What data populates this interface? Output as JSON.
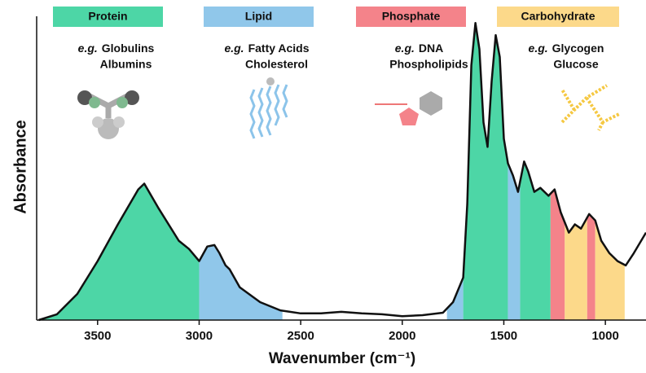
{
  "chart_data": {
    "type": "line",
    "x_label": "Wavenumber (cm⁻¹)",
    "y_label": "Absorbance",
    "xlim": [
      3800,
      800
    ],
    "ylim": [
      0,
      100
    ],
    "xticks": [
      3500,
      3000,
      2500,
      2000,
      1500,
      1000
    ],
    "line_color": "#111111",
    "example_prefix": "e.g.",
    "x": [
      3790,
      3700,
      3600,
      3500,
      3400,
      3300,
      3270,
      3200,
      3100,
      3050,
      3000,
      2960,
      2925,
      2900,
      2870,
      2850,
      2800,
      2700,
      2600,
      2500,
      2400,
      2300,
      2200,
      2100,
      2000,
      1900,
      1800,
      1750,
      1700,
      1680,
      1660,
      1640,
      1620,
      1600,
      1580,
      1560,
      1540,
      1520,
      1500,
      1480,
      1455,
      1430,
      1400,
      1380,
      1350,
      1320,
      1280,
      1250,
      1220,
      1180,
      1150,
      1120,
      1080,
      1050,
      1020,
      980,
      940,
      900,
      860,
      800
    ],
    "values": [
      0,
      1.9,
      8.6,
      19.4,
      31.5,
      43.0,
      44.9,
      36.8,
      26.1,
      23.4,
      19.4,
      24.2,
      24.7,
      22.0,
      18.0,
      16.7,
      10.8,
      5.9,
      3.2,
      2.2,
      2.2,
      2.7,
      2.2,
      1.9,
      1.3,
      1.6,
      2.4,
      5.9,
      14.0,
      38.2,
      83.9,
      97.8,
      89.2,
      65.1,
      57.0,
      78.5,
      93.8,
      86.6,
      59.7,
      51.6,
      47.6,
      42.2,
      52.2,
      48.9,
      42.2,
      43.5,
      40.9,
      43.0,
      35.5,
      28.8,
      31.5,
      30.1,
      34.9,
      32.8,
      26.1,
      22.0,
      19.4,
      18.0,
      22.0,
      28.8
    ],
    "classes": [
      {
        "name": "Protein",
        "color": "#4dd6a6",
        "examples": [
          "Globulins",
          "Albumins"
        ],
        "ranges": [
          [
            3800,
            3000
          ],
          [
            1700,
            1480
          ],
          [
            1420,
            1270
          ]
        ]
      },
      {
        "name": "Lipid",
        "color": "#90c7ea",
        "examples": [
          "Fatty Acids",
          "Cholesterol"
        ],
        "ranges": [
          [
            3000,
            2590
          ],
          [
            1780,
            1700
          ],
          [
            1480,
            1420
          ]
        ]
      },
      {
        "name": "Phosphate",
        "color": "#f4838a",
        "examples": [
          "DNA",
          "Phospholipids"
        ],
        "ranges": [
          [
            1270,
            1200
          ],
          [
            1090,
            1050
          ]
        ]
      },
      {
        "name": "Carbohydrate",
        "color": "#fcd98a",
        "examples": [
          "Glycogen",
          "Glucose"
        ],
        "ranges": [
          [
            1200,
            1090
          ],
          [
            1050,
            905
          ]
        ]
      }
    ]
  }
}
